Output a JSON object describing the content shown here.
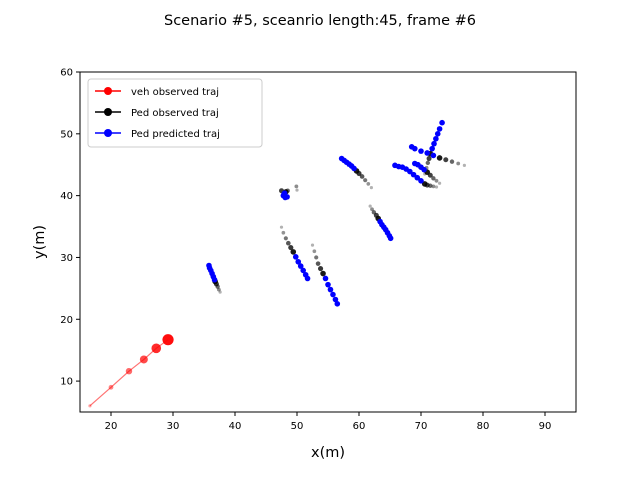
{
  "chart_data": {
    "type": "scatter",
    "title": "Scenario #5, sceanrio length:45, frame #6",
    "xlabel": "x(m)",
    "ylabel": "y(m)",
    "xlim": [
      15,
      95
    ],
    "ylim": [
      5,
      60
    ],
    "xticks": [
      20,
      30,
      40,
      50,
      60,
      70,
      80,
      90
    ],
    "yticks": [
      10,
      20,
      30,
      40,
      50,
      60
    ],
    "grid": false,
    "legend_position": "top-left",
    "legend": [
      {
        "label": "veh observed traj",
        "color": "#ff0000"
      },
      {
        "label": "Ped observed traj",
        "color": "#000000"
      },
      {
        "label": "Ped predicted traj",
        "color": "#0000ff"
      }
    ],
    "vehicle": {
      "color": "#ff0000",
      "points": [
        {
          "x": 16.6,
          "y": 6.0
        },
        {
          "x": 20.0,
          "y": 9.0
        },
        {
          "x": 22.9,
          "y": 11.6
        },
        {
          "x": 25.3,
          "y": 13.5
        },
        {
          "x": 27.3,
          "y": 15.3
        },
        {
          "x": 29.2,
          "y": 16.7
        }
      ]
    },
    "pedestrians": [
      {
        "observed": [
          {
            "x": 37.6,
            "y": 24.4
          },
          {
            "x": 37.4,
            "y": 24.8
          },
          {
            "x": 37.2,
            "y": 25.3
          },
          {
            "x": 37.0,
            "y": 25.7
          },
          {
            "x": 36.8,
            "y": 26.1
          }
        ],
        "predicted": [
          {
            "x": 36.7,
            "y": 26.4
          },
          {
            "x": 36.5,
            "y": 26.9
          },
          {
            "x": 36.3,
            "y": 27.4
          },
          {
            "x": 36.1,
            "y": 27.9
          },
          {
            "x": 35.9,
            "y": 28.3
          },
          {
            "x": 35.8,
            "y": 28.7
          }
        ]
      },
      {
        "observed": [
          {
            "x": 50.0,
            "y": 40.9
          },
          {
            "x": 49.9,
            "y": 41.5
          },
          {
            "x": 48.5,
            "y": 40.8
          },
          {
            "x": 47.5,
            "y": 40.8
          },
          {
            "x": 48.2,
            "y": 40.6
          }
        ],
        "predicted": [
          {
            "x": 48.0,
            "y": 40.4
          },
          {
            "x": 47.9,
            "y": 40.2
          },
          {
            "x": 47.8,
            "y": 40.0
          },
          {
            "x": 48.4,
            "y": 39.8
          },
          {
            "x": 48.1,
            "y": 39.7
          }
        ]
      },
      {
        "observed": [
          {
            "x": 47.5,
            "y": 34.9
          },
          {
            "x": 47.8,
            "y": 34.0
          },
          {
            "x": 48.2,
            "y": 33.1
          },
          {
            "x": 48.6,
            "y": 32.3
          },
          {
            "x": 49.0,
            "y": 31.6
          },
          {
            "x": 49.4,
            "y": 30.9
          }
        ],
        "predicted": [
          {
            "x": 49.8,
            "y": 30.1
          },
          {
            "x": 50.2,
            "y": 29.3
          },
          {
            "x": 50.6,
            "y": 28.6
          },
          {
            "x": 51.0,
            "y": 27.9
          },
          {
            "x": 51.4,
            "y": 27.2
          },
          {
            "x": 51.7,
            "y": 26.6
          }
        ]
      },
      {
        "observed": [
          {
            "x": 52.5,
            "y": 32.0
          },
          {
            "x": 52.8,
            "y": 31.0
          },
          {
            "x": 53.1,
            "y": 30.0
          },
          {
            "x": 53.4,
            "y": 29.0
          },
          {
            "x": 53.8,
            "y": 28.2
          },
          {
            "x": 54.2,
            "y": 27.4
          }
        ],
        "predicted": [
          {
            "x": 54.6,
            "y": 26.6
          },
          {
            "x": 55.0,
            "y": 25.6
          },
          {
            "x": 55.4,
            "y": 24.8
          },
          {
            "x": 55.8,
            "y": 24.0
          },
          {
            "x": 56.2,
            "y": 23.2
          },
          {
            "x": 56.5,
            "y": 22.5
          }
        ]
      },
      {
        "observed": [
          {
            "x": 62.0,
            "y": 41.3
          },
          {
            "x": 61.5,
            "y": 41.9
          },
          {
            "x": 61.0,
            "y": 42.5
          },
          {
            "x": 60.5,
            "y": 43.1
          },
          {
            "x": 60.0,
            "y": 43.6
          },
          {
            "x": 59.6,
            "y": 44.0
          }
        ],
        "predicted": [
          {
            "x": 59.2,
            "y": 44.4
          },
          {
            "x": 58.8,
            "y": 44.8
          },
          {
            "x": 58.4,
            "y": 45.1
          },
          {
            "x": 58.0,
            "y": 45.4
          },
          {
            "x": 57.6,
            "y": 45.7
          },
          {
            "x": 57.2,
            "y": 46.0
          }
        ]
      },
      {
        "observed": [
          {
            "x": 61.8,
            "y": 38.3
          },
          {
            "x": 62.1,
            "y": 37.8
          },
          {
            "x": 62.4,
            "y": 37.3
          },
          {
            "x": 62.8,
            "y": 36.8
          },
          {
            "x": 63.1,
            "y": 36.3
          }
        ],
        "predicted": [
          {
            "x": 63.4,
            "y": 35.8
          },
          {
            "x": 63.7,
            "y": 35.3
          },
          {
            "x": 64.0,
            "y": 34.9
          },
          {
            "x": 64.3,
            "y": 34.5
          },
          {
            "x": 64.6,
            "y": 34.0
          },
          {
            "x": 64.9,
            "y": 33.5
          },
          {
            "x": 65.1,
            "y": 33.1
          }
        ]
      },
      {
        "observed": [
          {
            "x": 70.6,
            "y": 43.5
          },
          {
            "x": 70.9,
            "y": 44.5
          },
          {
            "x": 71.1,
            "y": 45.3
          },
          {
            "x": 71.3,
            "y": 46.0
          },
          {
            "x": 71.5,
            "y": 46.8
          }
        ],
        "predicted": [
          {
            "x": 71.8,
            "y": 47.6
          },
          {
            "x": 72.1,
            "y": 48.4
          },
          {
            "x": 72.4,
            "y": 49.2
          },
          {
            "x": 72.7,
            "y": 50.0
          },
          {
            "x": 73.0,
            "y": 50.8
          },
          {
            "x": 73.4,
            "y": 51.8
          }
        ]
      },
      {
        "observed": [
          {
            "x": 77.0,
            "y": 44.9
          },
          {
            "x": 76.0,
            "y": 45.2
          },
          {
            "x": 75.0,
            "y": 45.5
          },
          {
            "x": 74.0,
            "y": 45.8
          },
          {
            "x": 73.0,
            "y": 46.1
          }
        ],
        "predicted": [
          {
            "x": 72.0,
            "y": 46.5
          },
          {
            "x": 71.0,
            "y": 46.9
          },
          {
            "x": 70.0,
            "y": 47.2
          },
          {
            "x": 69.0,
            "y": 47.6
          },
          {
            "x": 68.5,
            "y": 47.9
          }
        ]
      },
      {
        "observed": [
          {
            "x": 73.0,
            "y": 42.0
          },
          {
            "x": 72.5,
            "y": 42.4
          },
          {
            "x": 72.0,
            "y": 42.8
          },
          {
            "x": 71.5,
            "y": 43.3
          },
          {
            "x": 71.0,
            "y": 43.8
          }
        ],
        "predicted": [
          {
            "x": 70.5,
            "y": 44.2
          },
          {
            "x": 70.0,
            "y": 44.6
          },
          {
            "x": 69.5,
            "y": 45.0
          },
          {
            "x": 69.0,
            "y": 45.2
          }
        ]
      },
      {
        "observed": [
          {
            "x": 72.5,
            "y": 41.4
          },
          {
            "x": 72.0,
            "y": 41.5
          },
          {
            "x": 71.5,
            "y": 41.6
          },
          {
            "x": 71.0,
            "y": 41.7
          },
          {
            "x": 70.6,
            "y": 41.9
          }
        ],
        "predicted": [
          {
            "x": 70.0,
            "y": 42.4
          },
          {
            "x": 69.4,
            "y": 42.9
          },
          {
            "x": 68.8,
            "y": 43.4
          },
          {
            "x": 68.2,
            "y": 43.9
          },
          {
            "x": 67.6,
            "y": 44.3
          },
          {
            "x": 67.0,
            "y": 44.6
          },
          {
            "x": 66.4,
            "y": 44.7
          },
          {
            "x": 65.8,
            "y": 44.9
          }
        ]
      }
    ]
  }
}
